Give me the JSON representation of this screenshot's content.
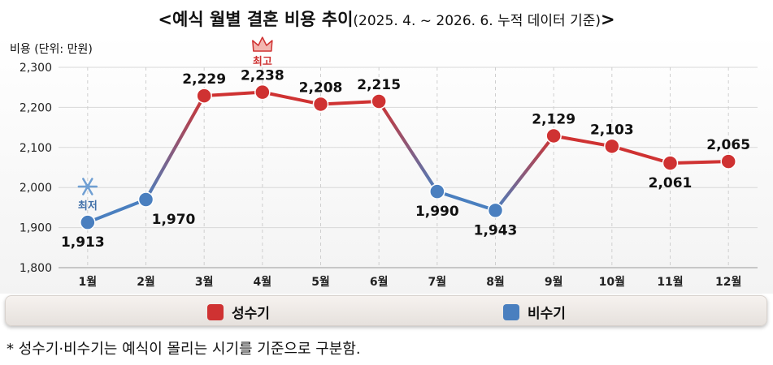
{
  "title": {
    "main": "<예식 월별 결혼 비용 추이",
    "sub": "(2025. 4. ~ 2026. 6. 누적 데이터 기준)",
    "close": ">"
  },
  "legend": {
    "peak": {
      "label": "성수기",
      "color": "#cf3232"
    },
    "off": {
      "label": "비수기",
      "color": "#4a7fbf"
    }
  },
  "footnote": "* 성수기·비수기는 예식이 몰리는 시기를 기준으로 구분함.",
  "chart_data": {
    "type": "line",
    "ylabel": "비용 (단위: 만원)",
    "ylim": [
      1800,
      2300
    ],
    "yticks": [
      "1,800",
      "1,900",
      "2,000",
      "2,100",
      "2,200",
      "2,300"
    ],
    "categories": [
      "1월",
      "2월",
      "3월",
      "4월",
      "5월",
      "6월",
      "7월",
      "8월",
      "9월",
      "10월",
      "11월",
      "12월"
    ],
    "values": [
      1913,
      1970,
      2229,
      2238,
      2208,
      2215,
      1990,
      1943,
      2129,
      2103,
      2061,
      2065
    ],
    "value_labels": [
      "1,913",
      "1,970",
      "2,229",
      "2,238",
      "2,208",
      "2,215",
      "1,990",
      "1,943",
      "2,129",
      "2,103",
      "2,061",
      "2,065"
    ],
    "season": [
      "off",
      "off",
      "peak",
      "peak",
      "peak",
      "peak",
      "off",
      "off",
      "peak",
      "peak",
      "peak",
      "peak"
    ],
    "label_position": [
      "below",
      "below",
      "above",
      "above",
      "above",
      "above",
      "below",
      "below",
      "above",
      "above",
      "below",
      "above"
    ],
    "annotations": {
      "max": {
        "index": 3,
        "text": "최고",
        "icon": "crown-icon",
        "color": "#cf3232"
      },
      "min": {
        "index": 0,
        "text": "최저",
        "icon": "snowflake-icon",
        "color": "#3f6fa8"
      }
    },
    "grid": true
  }
}
